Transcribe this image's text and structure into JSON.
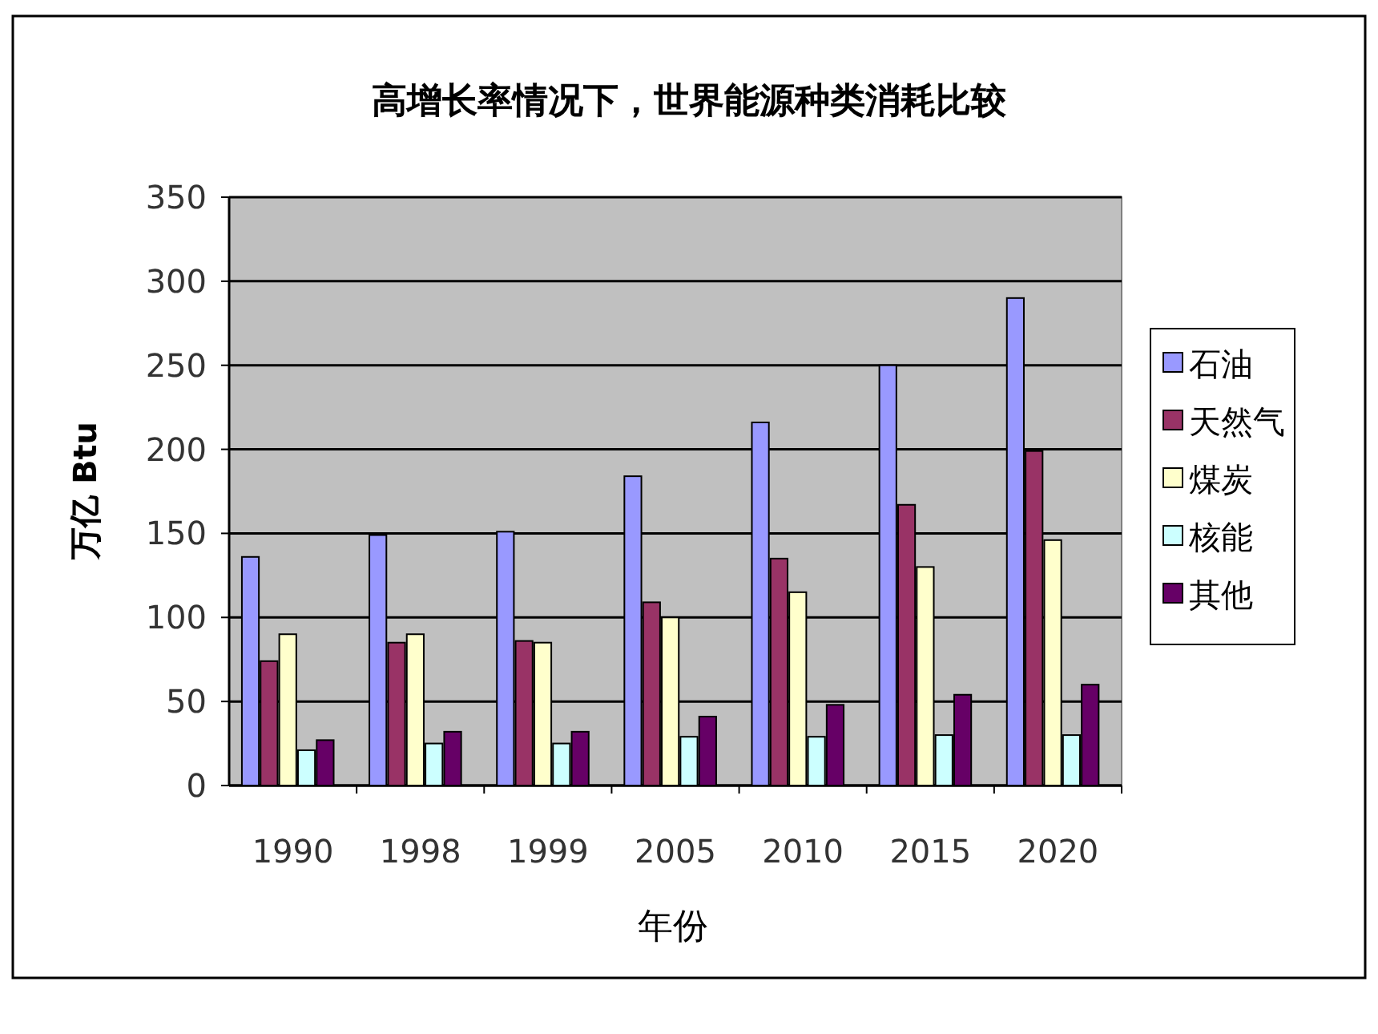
{
  "chart_data": {
    "type": "bar",
    "title": "高增长率情况下，世界能源种类消耗比较",
    "xlabel": "年份",
    "ylabel": "万亿 Btu",
    "categories": [
      "1990",
      "1998",
      "1999",
      "2005",
      "2010",
      "2015",
      "2020"
    ],
    "series": [
      {
        "name": "石油",
        "color": "#9999ff",
        "values": [
          136,
          149,
          151,
          184,
          216,
          250,
          290
        ]
      },
      {
        "name": "天然气",
        "color": "#993366",
        "values": [
          74,
          85,
          86,
          109,
          135,
          167,
          199
        ]
      },
      {
        "name": "煤炭",
        "color": "#ffffcc",
        "values": [
          90,
          90,
          85,
          100,
          115,
          130,
          146
        ]
      },
      {
        "name": "核能",
        "color": "#ccffff",
        "values": [
          21,
          25,
          25,
          29,
          29,
          30,
          30
        ]
      },
      {
        "name": "其他",
        "color": "#660066",
        "values": [
          27,
          32,
          32,
          41,
          48,
          54,
          60
        ]
      }
    ],
    "ylim": [
      0,
      350
    ],
    "yticks": [
      0,
      50,
      100,
      150,
      200,
      250,
      300,
      350
    ],
    "grid": "y",
    "legend": "right"
  }
}
